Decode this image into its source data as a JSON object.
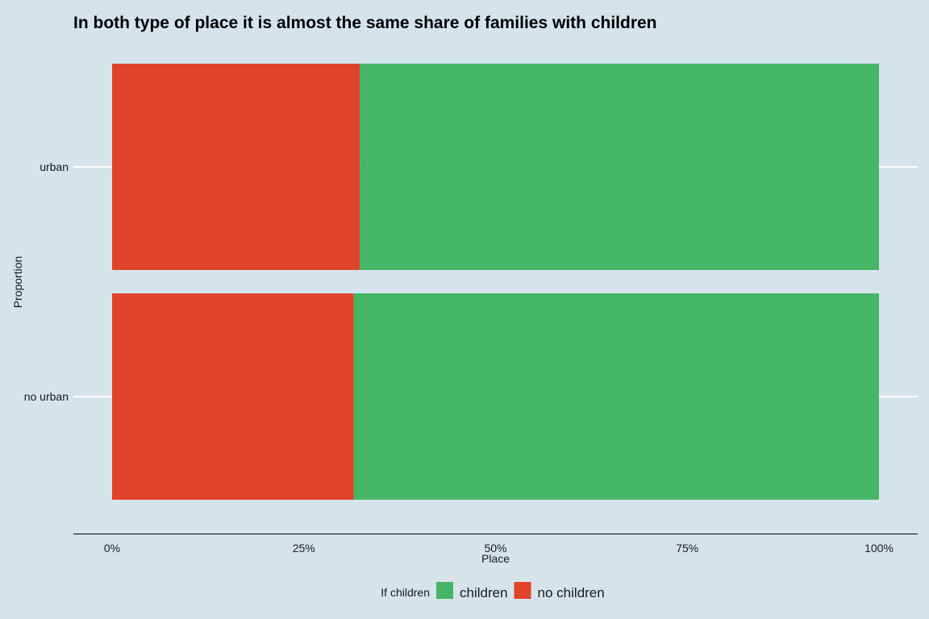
{
  "chart_data": {
    "type": "bar",
    "orientation": "horizontal",
    "stacked": "percent",
    "title": "In both type of place it is almost the same share of families with children",
    "xlabel": "Place",
    "ylabel": "Proportion",
    "categories": [
      "urban",
      "no urban"
    ],
    "series": [
      {
        "name": "no children",
        "values": [
          0.323,
          0.315
        ],
        "color": "#e0432a"
      },
      {
        "name": "children",
        "values": [
          0.677,
          0.685
        ],
        "color": "#46b566"
      }
    ],
    "xlim": [
      0,
      1
    ],
    "x_ticks": [
      {
        "value": 0,
        "label": "0%"
      },
      {
        "value": 0.25,
        "label": "25%"
      },
      {
        "value": 0.5,
        "label": "50%"
      },
      {
        "value": 0.75,
        "label": "75%"
      },
      {
        "value": 1,
        "label": "100%"
      }
    ],
    "legend": {
      "title": "If children",
      "position": "bottom",
      "items": [
        {
          "name": "children",
          "color": "#46b566"
        },
        {
          "name": "no children",
          "color": "#e0432a"
        }
      ]
    },
    "grid": "horizontal-major"
  },
  "theme": {
    "background": "#d5e4eb",
    "gridline": "#ffffff",
    "axis_line": "#000000"
  }
}
